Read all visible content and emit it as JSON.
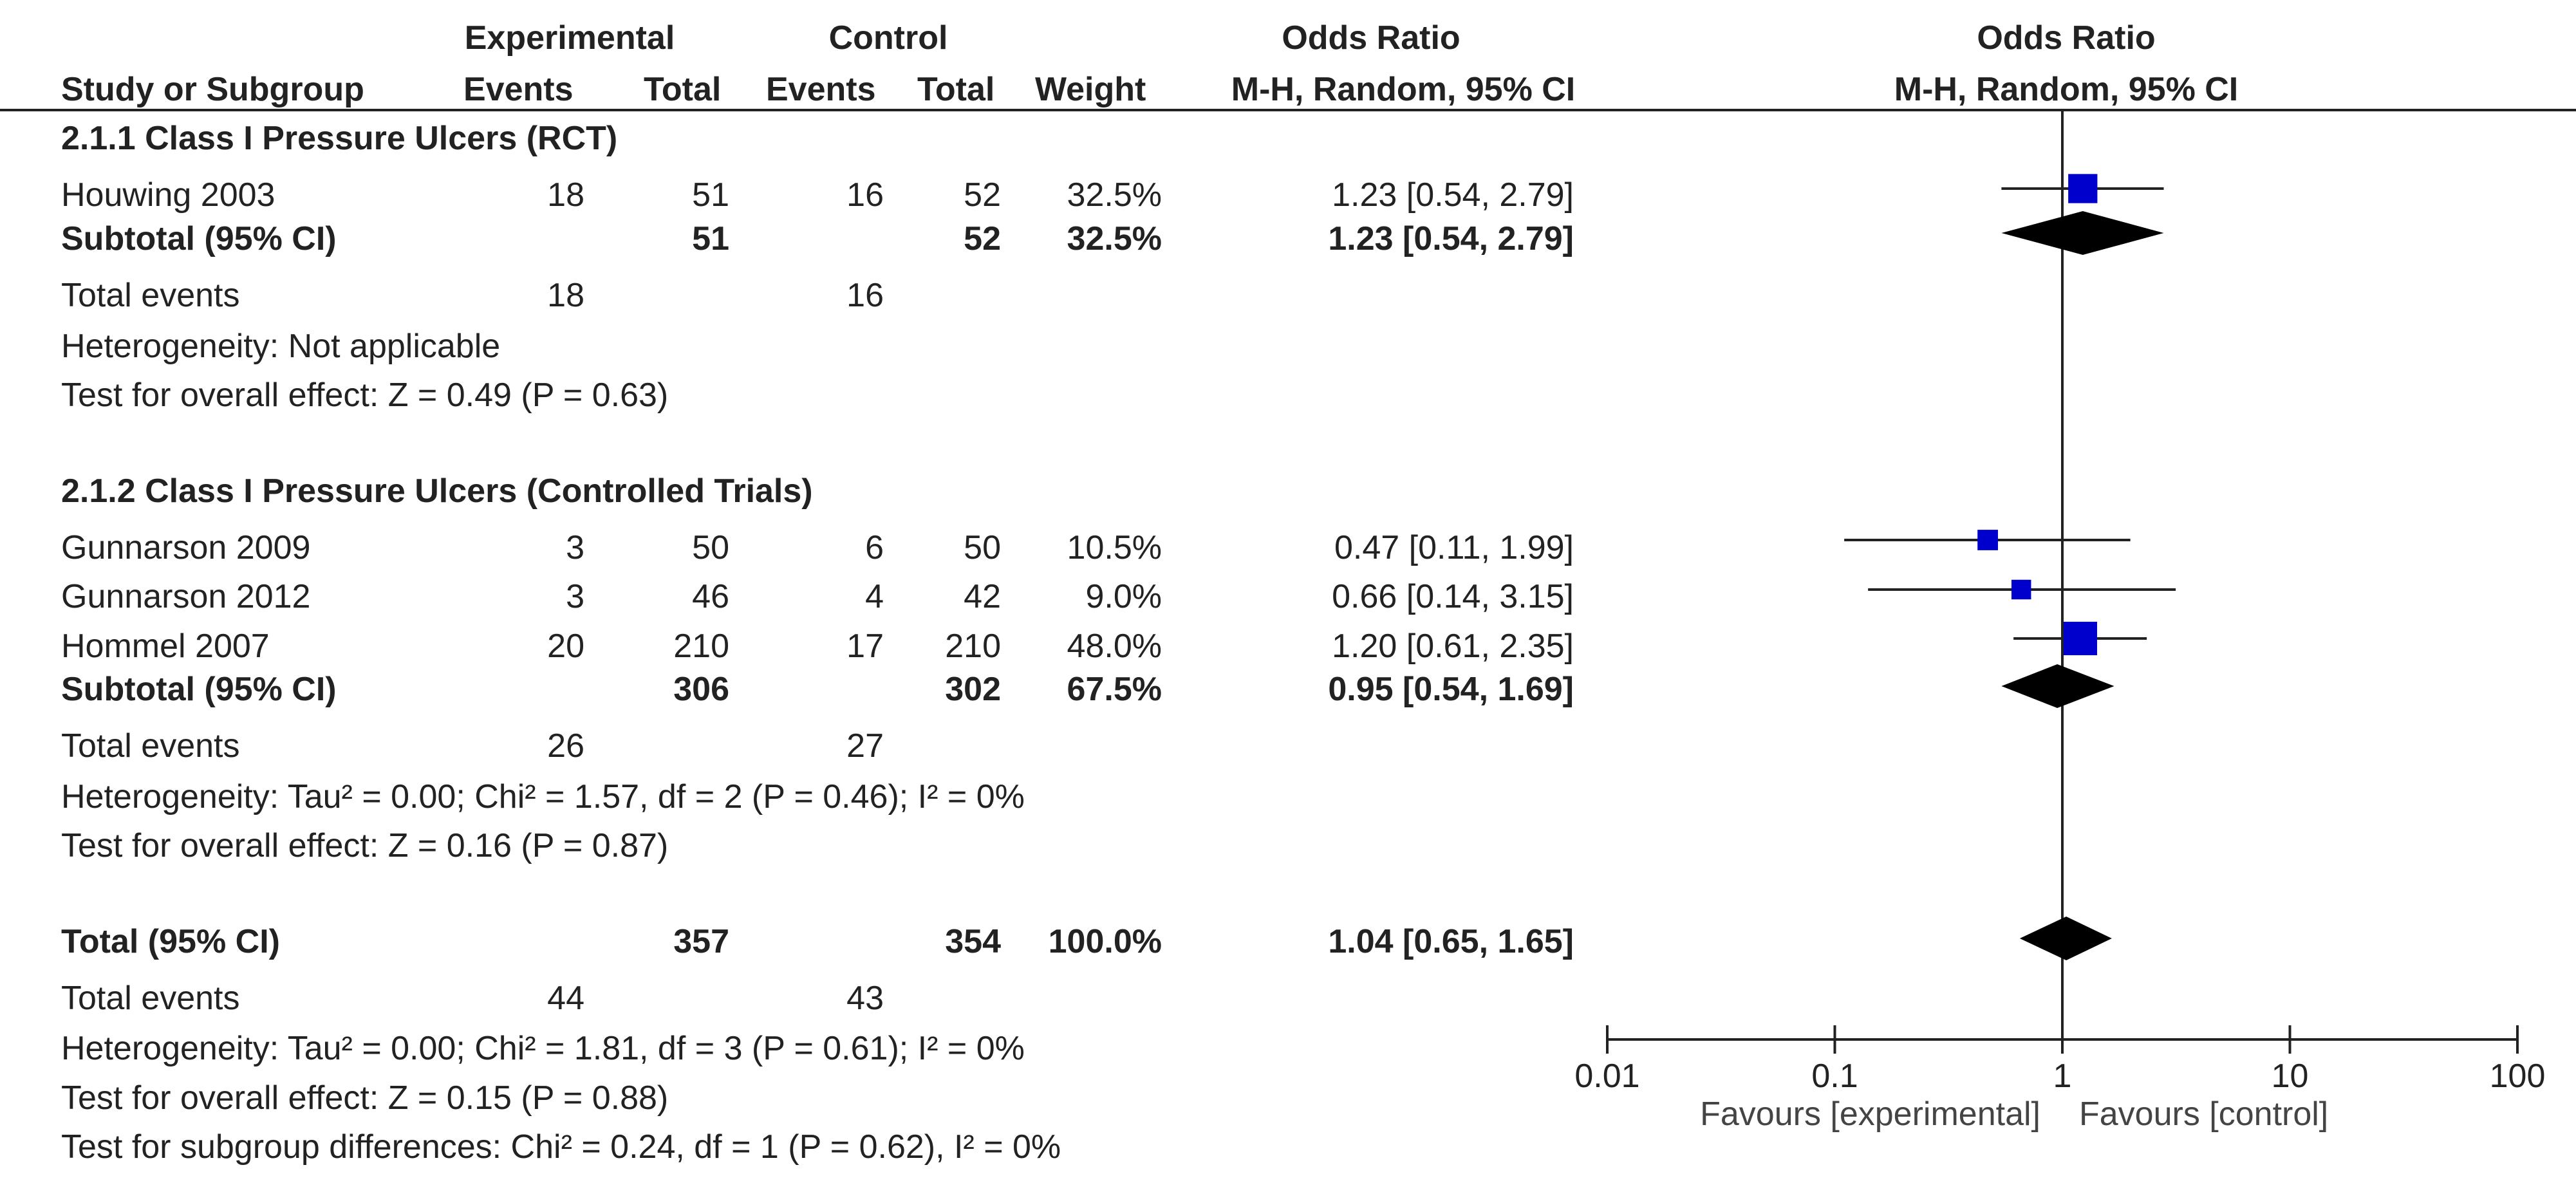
{
  "header": {
    "experimental_group": "Experimental",
    "control_group": "Control",
    "or_title_table": "Odds Ratio",
    "or_title_plot": "Odds Ratio",
    "col_study": "Study or Subgroup",
    "col_exp_events": "Events",
    "col_exp_total": "Total",
    "col_ctrl_events": "Events",
    "col_ctrl_total": "Total",
    "col_weight": "Weight",
    "col_ci_table": "M-H, Random, 95% CI",
    "col_ci_plot": "M-H, Random, 95% CI"
  },
  "subgroup1": {
    "title": "2.1.1 Class I Pressure Ulcers (RCT)",
    "studies": [
      {
        "name": "Houwing 2003",
        "exp_events": "18",
        "exp_total": "51",
        "ctrl_events": "16",
        "ctrl_total": "52",
        "weight": "32.5%",
        "ci": "1.23 [0.54, 2.79]"
      }
    ],
    "subtotal": {
      "label": "Subtotal (95% CI)",
      "exp_total": "51",
      "ctrl_total": "52",
      "weight": "32.5%",
      "ci": "1.23 [0.54, 2.79]"
    },
    "total_events": {
      "label": "Total events",
      "exp": "18",
      "ctrl": "16"
    },
    "heterogeneity": "Heterogeneity: Not applicable",
    "overall_effect": "Test for overall effect: Z = 0.49 (P = 0.63)"
  },
  "subgroup2": {
    "title": "2.1.2 Class I Pressure Ulcers (Controlled Trials)",
    "studies": [
      {
        "name": "Gunnarson 2009",
        "exp_events": "3",
        "exp_total": "50",
        "ctrl_events": "6",
        "ctrl_total": "50",
        "weight": "10.5%",
        "ci": "0.47 [0.11, 1.99]"
      },
      {
        "name": "Gunnarson 2012",
        "exp_events": "3",
        "exp_total": "46",
        "ctrl_events": "4",
        "ctrl_total": "42",
        "weight": "9.0%",
        "ci": "0.66 [0.14, 3.15]"
      },
      {
        "name": "Hommel 2007",
        "exp_events": "20",
        "exp_total": "210",
        "ctrl_events": "17",
        "ctrl_total": "210",
        "weight": "48.0%",
        "ci": "1.20 [0.61, 2.35]"
      }
    ],
    "subtotal": {
      "label": "Subtotal (95% CI)",
      "exp_total": "306",
      "ctrl_total": "302",
      "weight": "67.5%",
      "ci": "0.95 [0.54, 1.69]"
    },
    "total_events": {
      "label": "Total events",
      "exp": "26",
      "ctrl": "27"
    },
    "heterogeneity": "Heterogeneity: Tau² = 0.00; Chi² = 1.57, df = 2 (P = 0.46); I² = 0%",
    "overall_effect": "Test for overall effect: Z = 0.16 (P = 0.87)"
  },
  "total": {
    "label": "Total (95% CI)",
    "exp_total": "357",
    "ctrl_total": "354",
    "weight": "100.0%",
    "ci": "1.04 [0.65, 1.65]",
    "total_events": {
      "label": "Total events",
      "exp": "44",
      "ctrl": "43"
    },
    "heterogeneity": "Heterogeneity: Tau² = 0.00; Chi² = 1.81, df = 3 (P = 0.61); I² = 0%",
    "overall_effect": "Test for overall effect: Z = 0.15 (P = 0.88)",
    "subgroup_diff": "Test for subgroup differences: Chi² = 0.24, df = 1 (P = 0.62), I² = 0%"
  },
  "axis": {
    "ticks": [
      "0.01",
      "0.1",
      "1",
      "10",
      "100"
    ],
    "favours_left": "Favours [experimental]",
    "favours_right": "Favours [control]"
  },
  "colors": {
    "study_marker": "#0000cc",
    "diamond": "#000000",
    "text": "#222222"
  },
  "chart_data": {
    "type": "forest",
    "scale": "log",
    "xlim": [
      0.01,
      100
    ],
    "ticks": [
      0.01,
      0.1,
      1,
      10,
      100
    ],
    "reference_line": 1,
    "xlabel_left": "Favours [experimental]",
    "xlabel_right": "Favours [control]",
    "title": "Odds Ratio",
    "subtitle": "M-H, Random, 95% CI",
    "studies": [
      {
        "name": "Houwing 2003",
        "or": 1.23,
        "lo": 0.54,
        "hi": 2.79,
        "weight": 32.5
      },
      {
        "name": "Gunnarson 2009",
        "or": 0.47,
        "lo": 0.11,
        "hi": 1.99,
        "weight": 10.5
      },
      {
        "name": "Gunnarson 2012",
        "or": 0.66,
        "lo": 0.14,
        "hi": 3.15,
        "weight": 9.0
      },
      {
        "name": "Hommel 2007",
        "or": 1.2,
        "lo": 0.61,
        "hi": 2.35,
        "weight": 48.0
      }
    ],
    "pooled": [
      {
        "name": "Subtotal 2.1.1",
        "or": 1.23,
        "lo": 0.54,
        "hi": 2.79
      },
      {
        "name": "Subtotal 2.1.2",
        "or": 0.95,
        "lo": 0.54,
        "hi": 1.69
      },
      {
        "name": "Total",
        "or": 1.04,
        "lo": 0.65,
        "hi": 1.65
      }
    ]
  }
}
